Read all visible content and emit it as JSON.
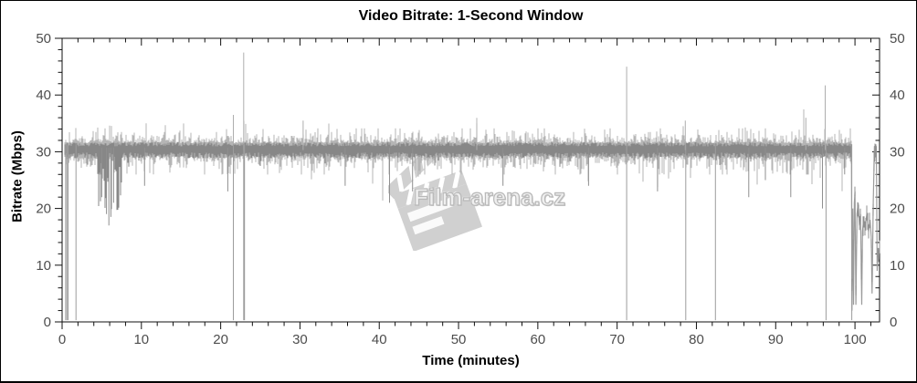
{
  "watermark": {
    "text": "Film-arena.cz",
    "icon": "clapperboard-icon"
  },
  "chart_data": {
    "type": "line",
    "title": "Video Bitrate: 1-Second Window",
    "xlabel": "Time (minutes)",
    "ylabel": "Bitrate (Mbps)",
    "xlim": [
      0,
      103.1
    ],
    "ylim": [
      0,
      50
    ],
    "x_major_ticks": [
      0,
      10,
      20,
      30,
      40,
      50,
      60,
      70,
      80,
      90,
      100
    ],
    "y_major_ticks": [
      0,
      10,
      20,
      30,
      40,
      50
    ],
    "x_minor_step": 2,
    "y_minor_step": 2,
    "grid": false,
    "legend": "none",
    "colors": {
      "series_light": "#b5b5b5",
      "series_dark": "#878787",
      "event_line": "#9c9c9c",
      "frame": "#111111",
      "tick_label": "#4d4d4d"
    },
    "baseline_mean_mbps": 30.5,
    "baseline_band_light_mbps": [
      27.5,
      33.5
    ],
    "baseline_band_dark_mbps": [
      29.3,
      31.5
    ],
    "main_band_range_min": [
      0.3,
      99.55
    ],
    "dense_dip_region": {
      "x0": 4.4,
      "x1": 7.6,
      "max_depth_below_mean": 9
    },
    "upward_spikes": [
      [
        21.6,
        36.5
      ],
      [
        22.9,
        47.5
      ],
      [
        30.4,
        35.5
      ],
      [
        52.3,
        35.0
      ],
      [
        71.2,
        45.0
      ],
      [
        78.6,
        35.5
      ],
      [
        93.8,
        36.0
      ],
      [
        96.25,
        41.7
      ]
    ],
    "notable_dips": [
      [
        5.0,
        22
      ],
      [
        5.6,
        19
      ],
      [
        5.9,
        17
      ],
      [
        6.15,
        18.5
      ],
      [
        6.5,
        21
      ],
      [
        10.4,
        24
      ],
      [
        20.9,
        23
      ],
      [
        35.7,
        24
      ],
      [
        41.3,
        21
      ],
      [
        44.2,
        23
      ],
      [
        55.6,
        24
      ],
      [
        66.4,
        24
      ],
      [
        75.1,
        23
      ],
      [
        86.6,
        22
      ],
      [
        88.7,
        25
      ],
      [
        91.9,
        22
      ],
      [
        95.9,
        20
      ],
      [
        98.7,
        26
      ]
    ],
    "drops_to_zero_at_min": [
      0.45,
      0.6,
      0.75,
      1.75,
      21.6,
      22.9,
      23.0,
      71.2,
      78.65,
      82.4,
      96.35,
      99.6
    ],
    "end_credits_segment": [
      [
        99.55,
        31
      ],
      [
        99.62,
        2
      ],
      [
        99.72,
        20
      ],
      [
        99.82,
        3
      ],
      [
        99.92,
        21
      ],
      [
        100.0,
        23
      ],
      [
        100.12,
        3
      ],
      [
        100.25,
        19
      ],
      [
        100.4,
        21
      ],
      [
        100.55,
        17
      ],
      [
        100.7,
        19
      ],
      [
        100.85,
        3
      ],
      [
        100.95,
        16
      ],
      [
        101.1,
        18
      ],
      [
        101.3,
        17
      ],
      [
        101.5,
        19
      ],
      [
        101.7,
        16
      ],
      [
        101.9,
        18
      ],
      [
        102.05,
        15
      ],
      [
        102.15,
        5
      ],
      [
        102.3,
        21
      ],
      [
        102.45,
        31
      ],
      [
        102.6,
        29
      ],
      [
        102.7,
        31
      ],
      [
        102.8,
        9
      ],
      [
        102.9,
        13
      ],
      [
        103.0,
        11
      ],
      [
        103.05,
        13
      ]
    ]
  }
}
